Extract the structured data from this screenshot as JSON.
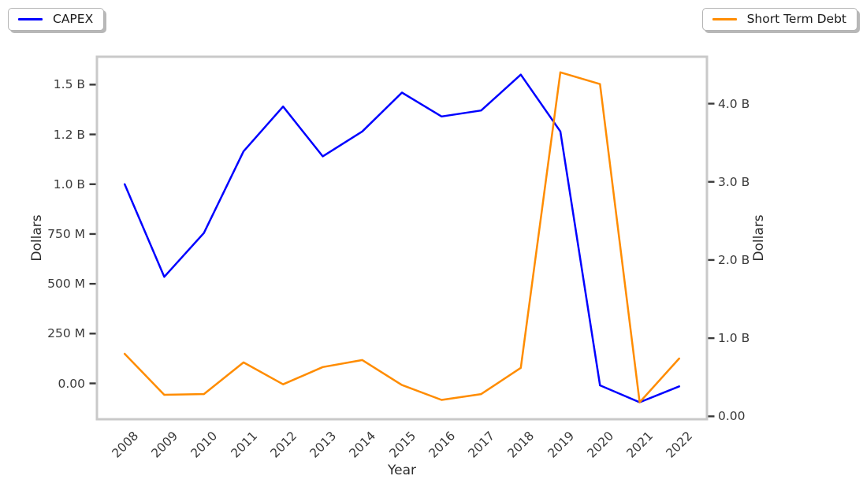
{
  "figure_background": "#ffffff",
  "legend_left": {
    "label": "CAPEX",
    "color": "#0000ff"
  },
  "legend_right": {
    "label": "Short Term Debt",
    "color": "#ff8c00"
  },
  "chart_data": {
    "type": "line",
    "title": "",
    "xlabel": "Year",
    "ylabel_left": "Dollars",
    "ylabel_right": "Dollars",
    "grid": false,
    "legend_position": "outside-top-corners",
    "x": [
      2008,
      2009,
      2010,
      2011,
      2012,
      2013,
      2014,
      2015,
      2016,
      2017,
      2018,
      2019,
      2020,
      2021,
      2022
    ],
    "series": [
      {
        "name": "CAPEX",
        "axis": "left",
        "unit": "millions of dollars",
        "color": "#0000ff",
        "values": [
          1000,
          535,
          755,
          1165,
          1390,
          1140,
          1265,
          1460,
          1340,
          1370,
          1550,
          1265,
          -10,
          -95,
          -15
        ]
      },
      {
        "name": "Short Term Debt",
        "axis": "right",
        "unit": "billions of dollars",
        "color": "#ff8c00",
        "values": [
          0.8,
          0.275,
          0.285,
          0.69,
          0.41,
          0.63,
          0.72,
          0.4,
          0.21,
          0.285,
          0.62,
          4.4,
          4.25,
          0.18,
          0.74
        ]
      }
    ],
    "xlim": [
      2007.3,
      2022.7
    ],
    "ylim_left_millions": [
      -180,
      1640
    ],
    "ylim_right_billions": [
      -0.037,
      4.6
    ],
    "yticks_left": [
      {
        "value": 0,
        "label": "0.00"
      },
      {
        "value": 250,
        "label": "250 M"
      },
      {
        "value": 500,
        "label": "500 M"
      },
      {
        "value": 750,
        "label": "750 M"
      },
      {
        "value": 1000,
        "label": "1.0 B"
      },
      {
        "value": 1250,
        "label": "1.2 B"
      },
      {
        "value": 1500,
        "label": "1.5 B"
      }
    ],
    "yticks_right": [
      {
        "value": 0,
        "label": "0.00"
      },
      {
        "value": 1,
        "label": "1.0 B"
      },
      {
        "value": 2,
        "label": "2.0 B"
      },
      {
        "value": 3,
        "label": "3.0 B"
      },
      {
        "value": 4,
        "label": "4.0 B"
      }
    ],
    "xticks": [
      "2008",
      "2009",
      "2010",
      "2011",
      "2012",
      "2013",
      "2014",
      "2015",
      "2016",
      "2017",
      "2018",
      "2019",
      "2020",
      "2021",
      "2022"
    ]
  }
}
